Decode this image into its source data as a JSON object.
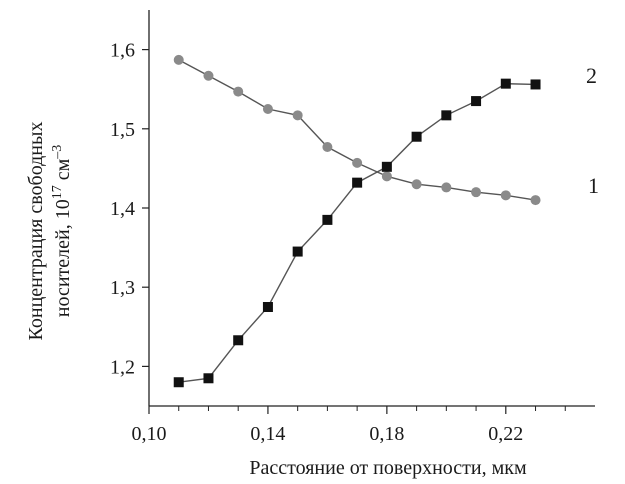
{
  "chart_data": {
    "type": "line",
    "xlabel": "Расстояние от поверхности, мкм",
    "ylabel_line1": "Концентрация свободных",
    "ylabel_line2_prefix": "носителей, 10",
    "ylabel_exp1": "17",
    "ylabel_unit": "см",
    "ylabel_exp2": "–3",
    "xlim": [
      0.1,
      0.25
    ],
    "ylim": [
      1.15,
      1.65
    ],
    "x_ticks": [
      0.1,
      0.14,
      0.18,
      0.22
    ],
    "x_tick_labels": [
      "0,10",
      "0,14",
      "0,18",
      "0,22"
    ],
    "x_minor_ticks": [
      0.11,
      0.12,
      0.13,
      0.15,
      0.16,
      0.17,
      0.19,
      0.2,
      0.21,
      0.23,
      0.24
    ],
    "y_ticks": [
      1.2,
      1.3,
      1.4,
      1.5,
      1.6
    ],
    "y_tick_labels": [
      "1,2",
      "1,3",
      "1,4",
      "1,5",
      "1,6"
    ],
    "grid": false,
    "legend": "none",
    "series": [
      {
        "name": "1",
        "marker": "circle",
        "x": [
          0.11,
          0.12,
          0.13,
          0.14,
          0.15,
          0.16,
          0.17,
          0.18,
          0.19,
          0.2,
          0.21,
          0.22,
          0.23
        ],
        "y": [
          1.587,
          1.567,
          1.547,
          1.525,
          1.517,
          1.477,
          1.457,
          1.44,
          1.43,
          1.426,
          1.42,
          1.416,
          1.41
        ]
      },
      {
        "name": "2",
        "marker": "square",
        "x": [
          0.11,
          0.12,
          0.13,
          0.14,
          0.15,
          0.16,
          0.17,
          0.18,
          0.19,
          0.2,
          0.21,
          0.22,
          0.23
        ],
        "y": [
          1.18,
          1.185,
          1.233,
          1.275,
          1.345,
          1.385,
          1.432,
          1.452,
          1.49,
          1.517,
          1.535,
          1.557,
          1.556
        ]
      }
    ],
    "colors": {
      "axis": "#222222",
      "line": "#555555",
      "series1_marker": "#8a8a8a",
      "series2_marker": "#111111"
    }
  }
}
